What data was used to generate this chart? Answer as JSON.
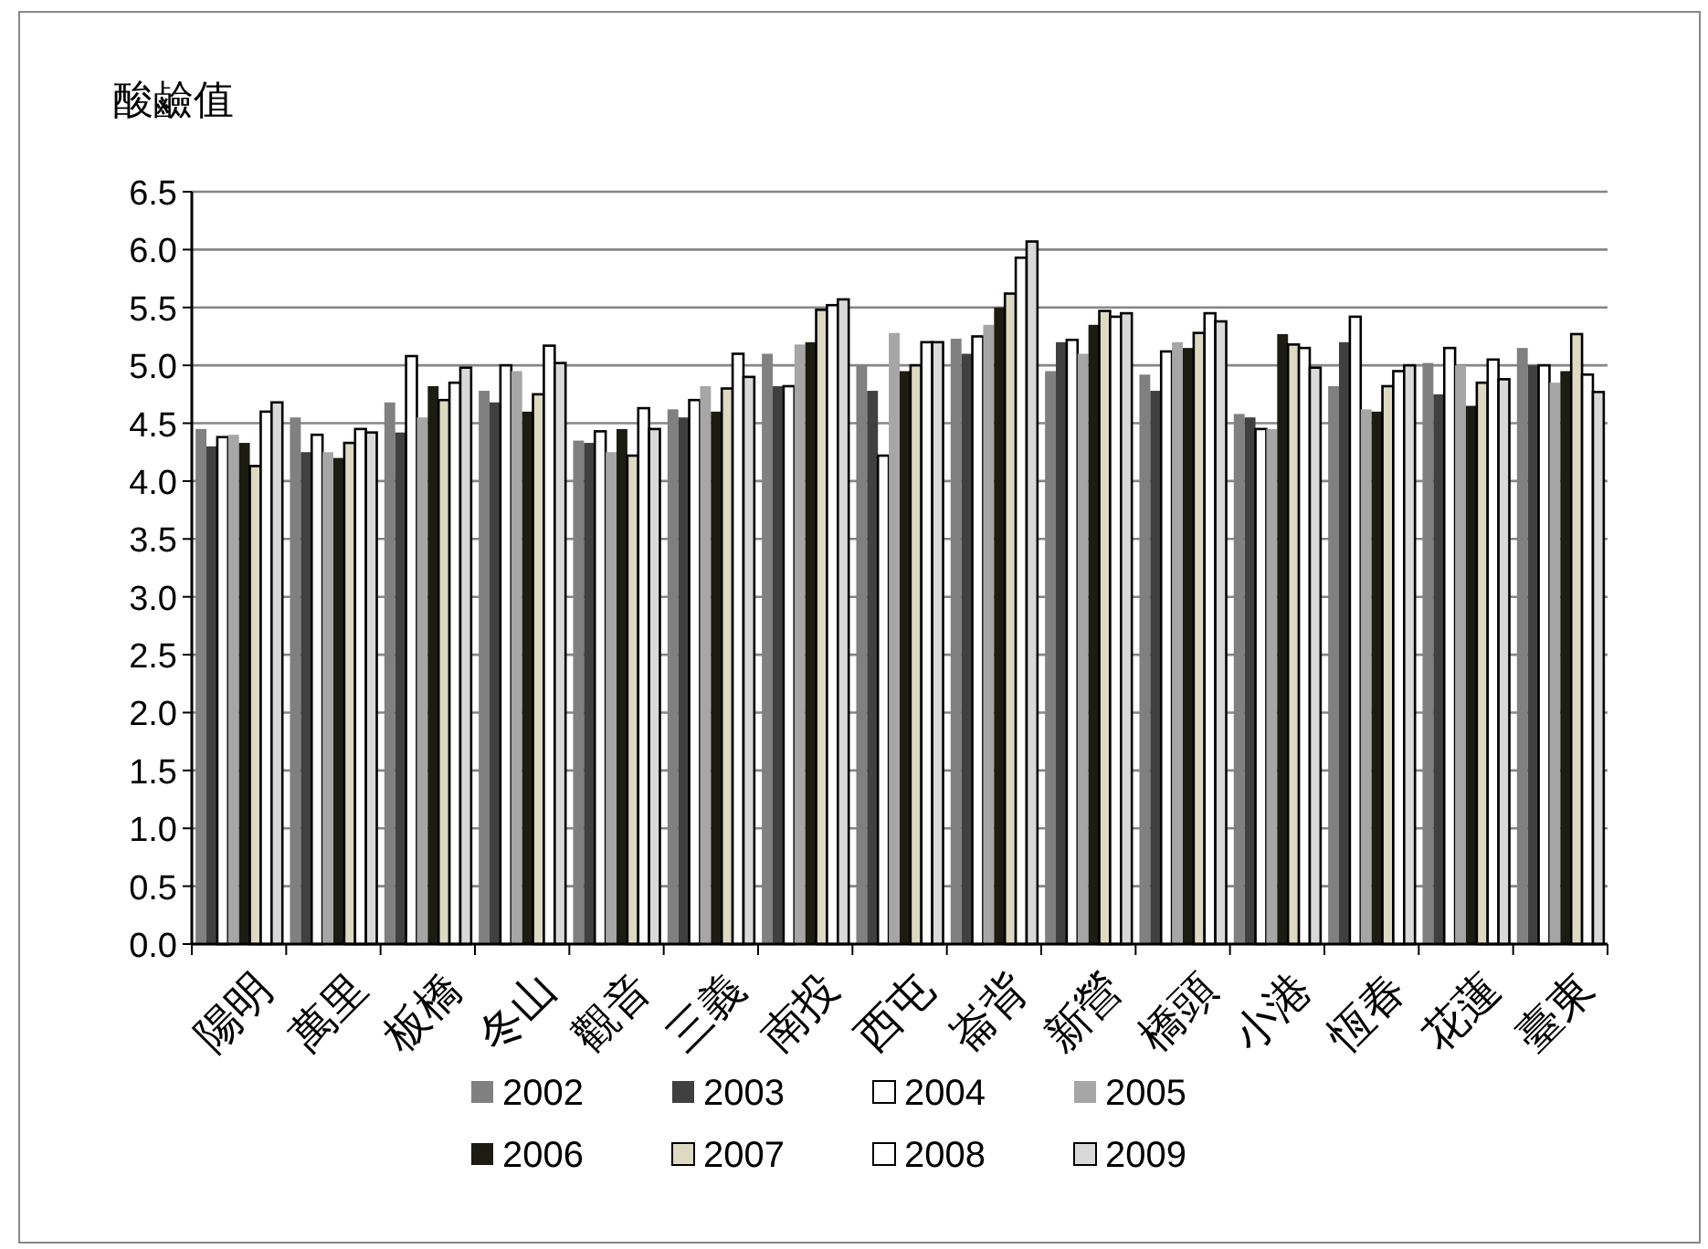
{
  "chart_data": {
    "type": "bar",
    "ylabel": "酸鹼值",
    "categories": [
      "陽明",
      "萬里",
      "板橋",
      "冬山",
      "觀音",
      "三義",
      "南投",
      "西屯",
      "崙背",
      "新營",
      "橋頭",
      "小港",
      "恆春",
      "花蓮",
      "臺東"
    ],
    "series": [
      {
        "name": "2002",
        "color": "#808080",
        "values": [
          4.45,
          4.55,
          4.68,
          4.78,
          4.35,
          4.62,
          5.1,
          5.0,
          5.23,
          4.95,
          4.92,
          4.58,
          4.82,
          5.02,
          5.15
        ]
      },
      {
        "name": "2003",
        "color": "#404040",
        "values": [
          4.3,
          4.25,
          4.42,
          4.68,
          4.33,
          4.55,
          4.82,
          4.78,
          5.1,
          5.2,
          4.78,
          4.55,
          5.2,
          4.75,
          5.0
        ]
      },
      {
        "name": "2004",
        "color": "#ffffff",
        "values": [
          4.38,
          4.4,
          5.08,
          5.0,
          4.43,
          4.7,
          4.82,
          4.22,
          5.25,
          5.22,
          5.12,
          4.45,
          5.42,
          5.15,
          5.0
        ]
      },
      {
        "name": "2005",
        "color": "#a6a6a6",
        "values": [
          4.4,
          4.25,
          4.55,
          4.95,
          4.25,
          4.82,
          5.18,
          5.28,
          5.35,
          5.1,
          5.2,
          4.45,
          4.62,
          5.0,
          4.85
        ]
      },
      {
        "name": "2006",
        "color": "#1c1c12",
        "values": [
          4.33,
          4.2,
          4.82,
          4.6,
          4.45,
          4.6,
          5.2,
          4.95,
          5.5,
          5.35,
          5.15,
          5.27,
          4.6,
          4.65,
          4.95
        ]
      },
      {
        "name": "2007",
        "color": "#ddd9c3",
        "values": [
          4.13,
          4.33,
          4.7,
          4.75,
          4.22,
          4.8,
          5.48,
          5.0,
          5.62,
          5.47,
          5.28,
          5.18,
          4.82,
          4.85,
          5.27
        ]
      },
      {
        "name": "2008",
        "color": "#ffffff",
        "values": [
          4.6,
          4.45,
          4.85,
          5.17,
          4.63,
          5.1,
          5.52,
          5.2,
          5.93,
          5.42,
          5.45,
          5.15,
          4.95,
          5.05,
          4.92
        ]
      },
      {
        "name": "2009",
        "color": "#d9d9d9",
        "values": [
          4.68,
          4.42,
          4.98,
          5.02,
          4.45,
          4.9,
          5.57,
          5.2,
          6.07,
          5.45,
          5.38,
          4.98,
          5.0,
          4.88,
          4.77
        ]
      }
    ],
    "ylim": [
      0,
      6.5
    ],
    "yticks": [
      {
        "value": 0,
        "label": "0.0"
      },
      {
        "value": 0.5,
        "label": "0.5"
      },
      {
        "value": 1,
        "label": "1.0"
      },
      {
        "value": 1.5,
        "label": "1.5"
      },
      {
        "value": 2,
        "label": "2.0"
      },
      {
        "value": 2.5,
        "label": "2.5"
      },
      {
        "value": 3,
        "label": "3.0"
      },
      {
        "value": 3.5,
        "label": "3.5"
      },
      {
        "value": 4,
        "label": "4.0"
      },
      {
        "value": 4.5,
        "label": "4.5"
      },
      {
        "value": 5,
        "label": "5.0"
      },
      {
        "value": 5.5,
        "label": "5.5"
      },
      {
        "value": 6,
        "label": "6.0"
      },
      {
        "value": 6.5,
        "label": "6.5"
      }
    ],
    "grid": "y",
    "legend": "bottom"
  }
}
